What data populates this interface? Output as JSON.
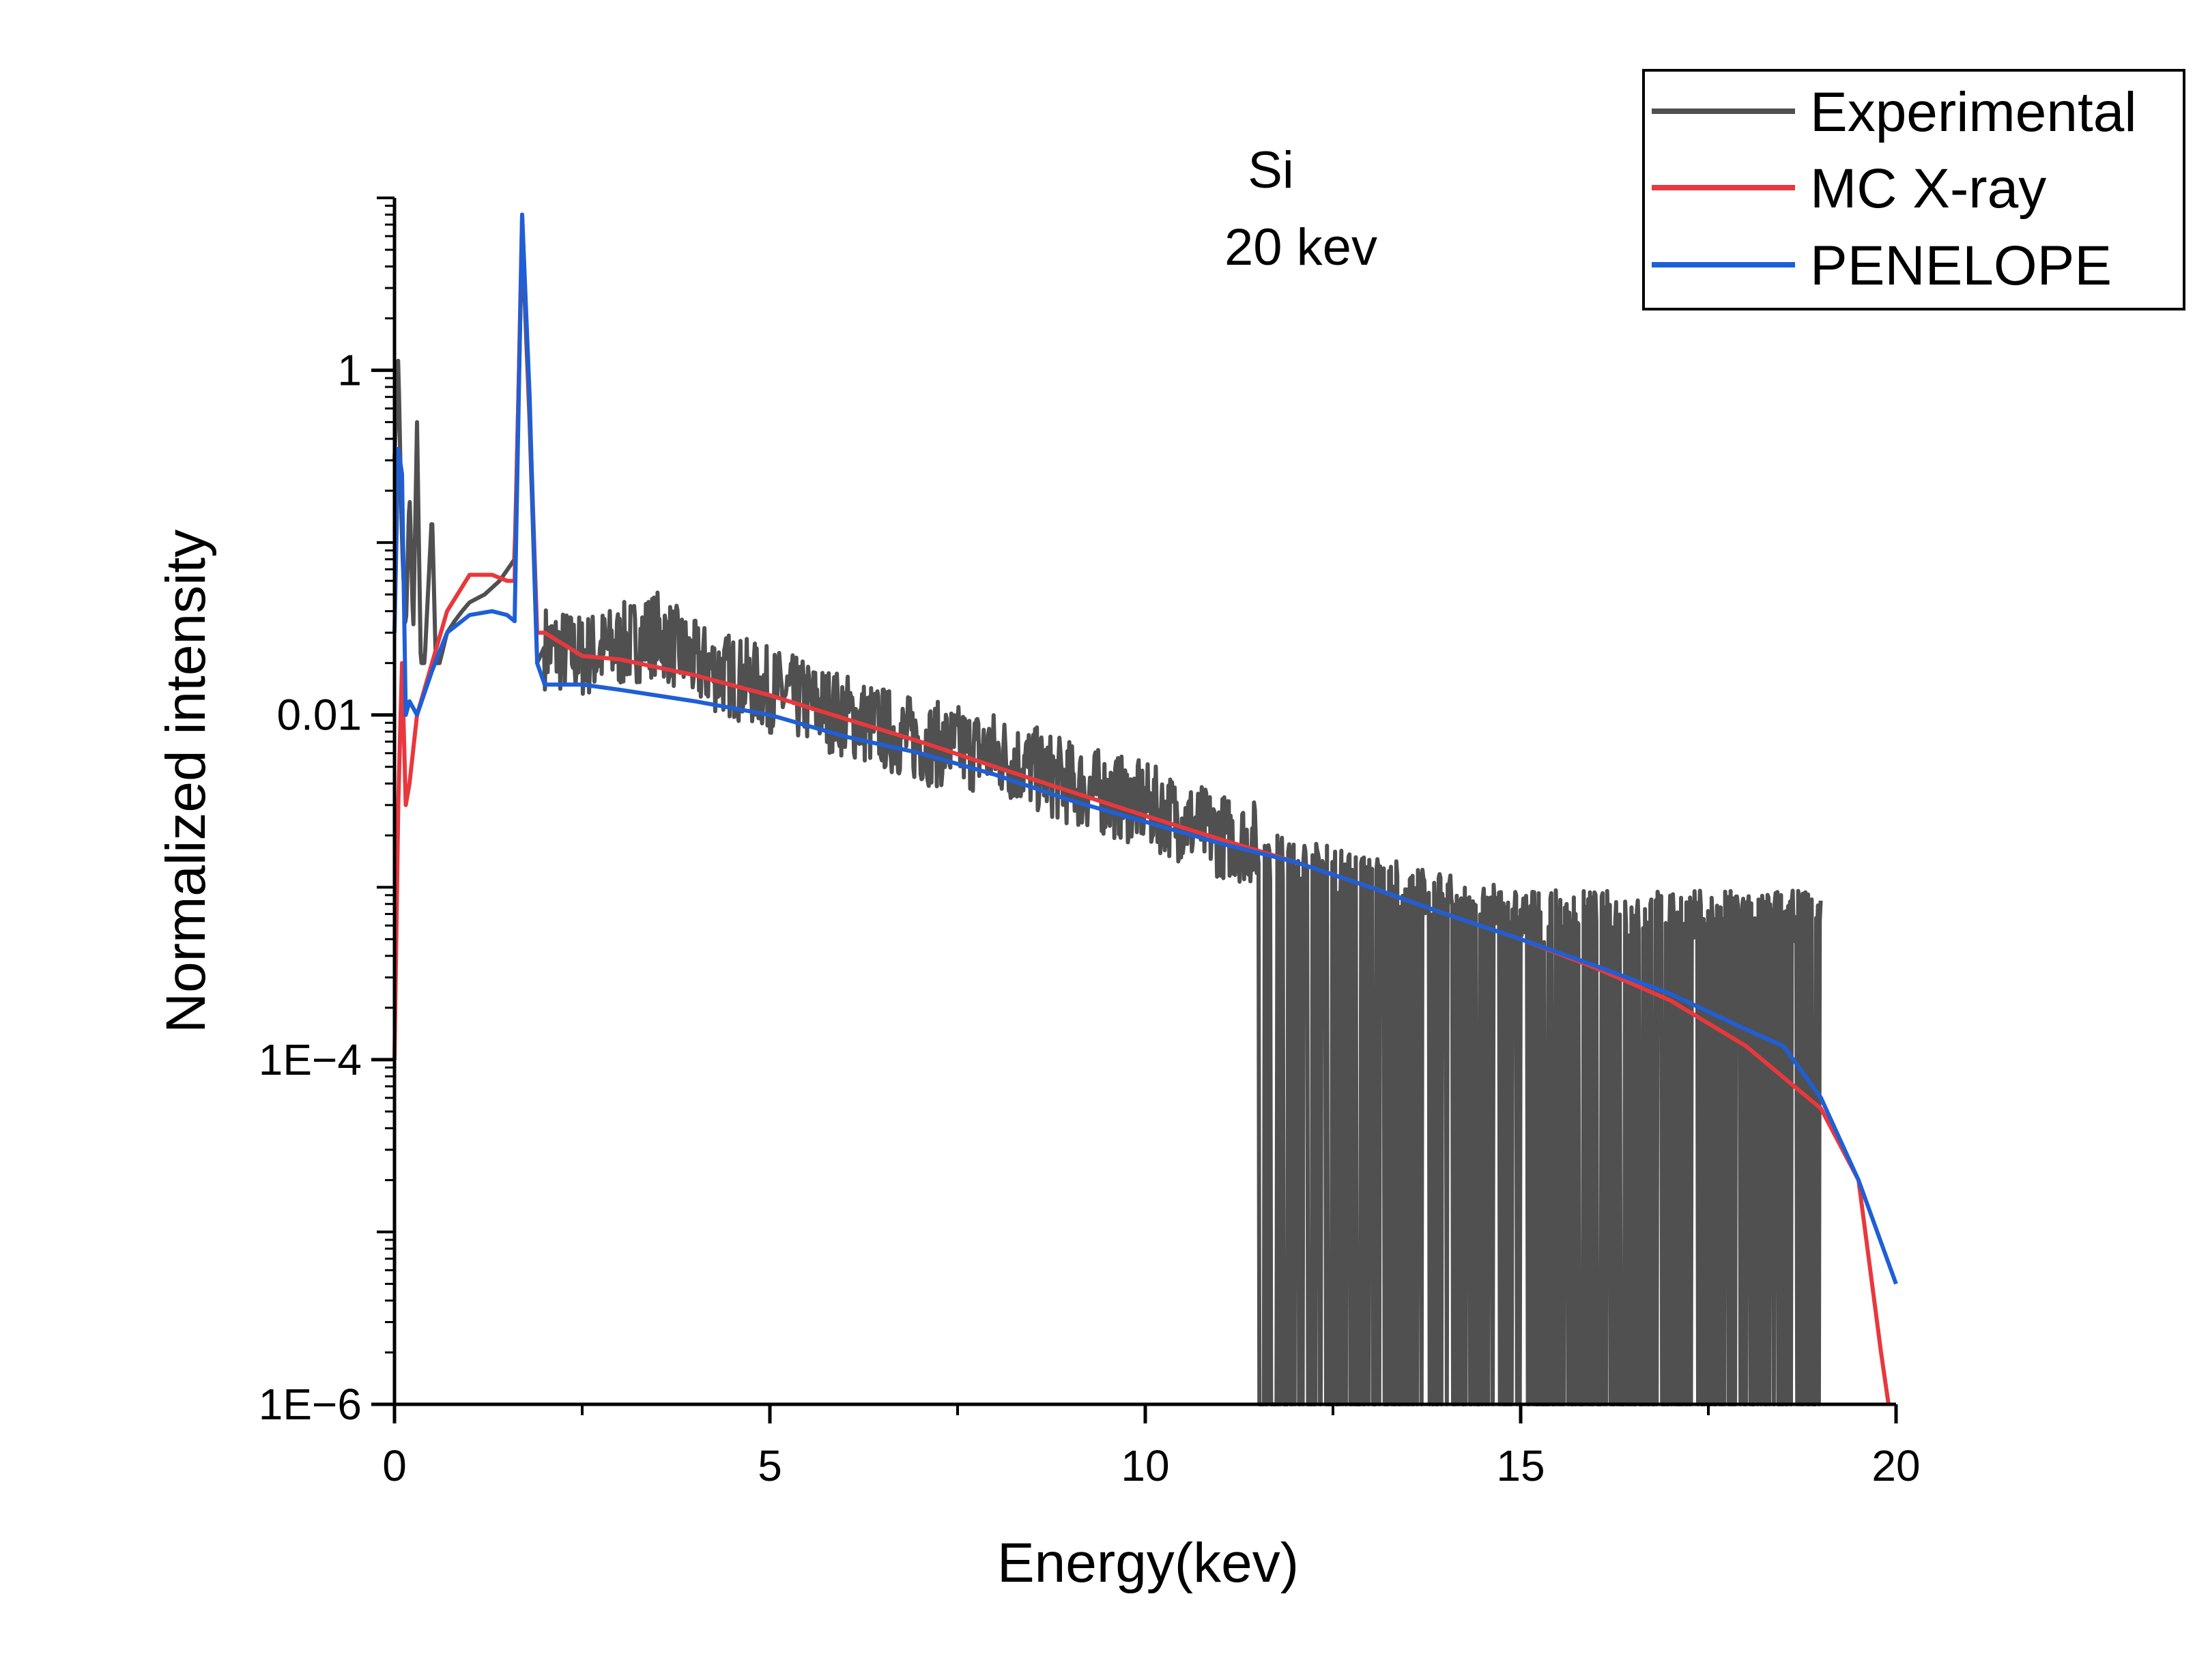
{
  "chart_data": {
    "type": "line",
    "title": "",
    "annotations": [
      "Si",
      "20 kev"
    ],
    "xlabel": "Energy(kev)",
    "ylabel": "Normalized intensity",
    "xlim": [
      0,
      20
    ],
    "ylim": [
      1e-06,
      10
    ],
    "yscale": "log",
    "x_ticks": [
      0,
      5,
      10,
      15,
      20
    ],
    "x_tick_labels": [
      "0",
      "5",
      "10",
      "15",
      "20"
    ],
    "y_ticks": [
      1e-06,
      0.0001,
      0.01,
      1
    ],
    "y_tick_labels": [
      "1E−6",
      "1E−4",
      "0.01",
      "1"
    ],
    "legend_position": "top-right",
    "series": [
      {
        "name": "Experimental",
        "color": "#505050",
        "points": [
          [
            0.0,
            0.3
          ],
          [
            0.05,
            1.2
          ],
          [
            0.1,
            0.1
          ],
          [
            0.15,
            0.03
          ],
          [
            0.2,
            0.2
          ],
          [
            0.25,
            0.03
          ],
          [
            0.3,
            0.5
          ],
          [
            0.35,
            0.02
          ],
          [
            0.4,
            0.02
          ],
          [
            0.5,
            0.15
          ],
          [
            0.55,
            0.02
          ],
          [
            0.6,
            0.02
          ],
          [
            0.7,
            0.03
          ],
          [
            0.8,
            0.035
          ],
          [
            0.9,
            0.04
          ],
          [
            1.0,
            0.045
          ],
          [
            1.2,
            0.05
          ],
          [
            1.4,
            0.06
          ],
          [
            1.6,
            0.08
          ],
          [
            1.7,
            6.0
          ],
          [
            1.8,
            0.5
          ],
          [
            1.9,
            0.02
          ],
          [
            2.0,
            0.025
          ],
          [
            2.5,
            0.022
          ],
          [
            3.0,
            0.025
          ],
          [
            3.5,
            0.03
          ],
          [
            4.0,
            0.02
          ],
          [
            5.0,
            0.014
          ],
          [
            6.0,
            0.01
          ],
          [
            7.0,
            0.007
          ],
          [
            8.0,
            0.006
          ],
          [
            9.0,
            0.004
          ],
          [
            10.0,
            0.003
          ],
          [
            11.0,
            0.002
          ],
          [
            12.0,
            0.0016
          ],
          [
            13.0,
            0.0013
          ],
          [
            14.0,
            0.001
          ],
          [
            15.0,
            0.0008
          ],
          [
            16.0,
            0.0008
          ],
          [
            17.0,
            0.0008
          ],
          [
            18.0,
            0.0008
          ],
          [
            19.0,
            0.0008
          ]
        ],
        "zero_dropouts_from": 11.5
      },
      {
        "name": "MC X-ray",
        "color": "#e8383d",
        "points": [
          [
            0.0,
            0.0001
          ],
          [
            0.05,
            0.003
          ],
          [
            0.1,
            0.02
          ],
          [
            0.15,
            0.003
          ],
          [
            0.2,
            0.004
          ],
          [
            0.3,
            0.01
          ],
          [
            0.5,
            0.02
          ],
          [
            0.7,
            0.04
          ],
          [
            1.0,
            0.065
          ],
          [
            1.3,
            0.065
          ],
          [
            1.5,
            0.06
          ],
          [
            1.6,
            0.06
          ],
          [
            1.7,
            8.0
          ],
          [
            1.8,
            0.6
          ],
          [
            1.9,
            0.03
          ],
          [
            2.0,
            0.03
          ],
          [
            2.5,
            0.022
          ],
          [
            3.0,
            0.021
          ],
          [
            4.0,
            0.017
          ],
          [
            5.0,
            0.013
          ],
          [
            6.0,
            0.0095
          ],
          [
            7.0,
            0.007
          ],
          [
            8.0,
            0.005
          ],
          [
            9.0,
            0.0036
          ],
          [
            10.0,
            0.0026
          ],
          [
            11.0,
            0.0019
          ],
          [
            12.0,
            0.0014
          ],
          [
            13.0,
            0.001
          ],
          [
            14.0,
            0.0007
          ],
          [
            15.0,
            0.0005
          ],
          [
            16.0,
            0.00034
          ],
          [
            17.0,
            0.00022
          ],
          [
            18.0,
            0.00012
          ],
          [
            19.0,
            5.2e-05
          ],
          [
            19.5,
            2e-05
          ],
          [
            19.8,
            2e-06
          ],
          [
            19.9,
            1e-06
          ]
        ]
      },
      {
        "name": "PENELOPE",
        "color": "#1f5fd6",
        "points": [
          [
            0.0,
            0.03
          ],
          [
            0.05,
            0.35
          ],
          [
            0.1,
            0.25
          ],
          [
            0.15,
            0.01
          ],
          [
            0.2,
            0.012
          ],
          [
            0.3,
            0.01
          ],
          [
            0.5,
            0.018
          ],
          [
            0.7,
            0.03
          ],
          [
            1.0,
            0.038
          ],
          [
            1.3,
            0.04
          ],
          [
            1.5,
            0.038
          ],
          [
            1.6,
            0.035
          ],
          [
            1.7,
            8.0
          ],
          [
            1.8,
            0.7
          ],
          [
            1.9,
            0.02
          ],
          [
            2.0,
            0.015
          ],
          [
            2.5,
            0.015
          ],
          [
            3.0,
            0.014
          ],
          [
            4.0,
            0.012
          ],
          [
            5.0,
            0.01
          ],
          [
            6.0,
            0.0075
          ],
          [
            7.0,
            0.006
          ],
          [
            8.0,
            0.0045
          ],
          [
            9.0,
            0.0032
          ],
          [
            10.0,
            0.0024
          ],
          [
            11.0,
            0.0018
          ],
          [
            12.0,
            0.0014
          ],
          [
            13.0,
            0.001
          ],
          [
            14.0,
            0.0007
          ],
          [
            15.0,
            0.0005
          ],
          [
            16.0,
            0.00035
          ],
          [
            17.0,
            0.00024
          ],
          [
            18.0,
            0.00015
          ],
          [
            18.5,
            0.00012
          ],
          [
            19.0,
            6e-05
          ],
          [
            19.5,
            2e-05
          ],
          [
            20.0,
            5e-06
          ]
        ]
      }
    ]
  }
}
